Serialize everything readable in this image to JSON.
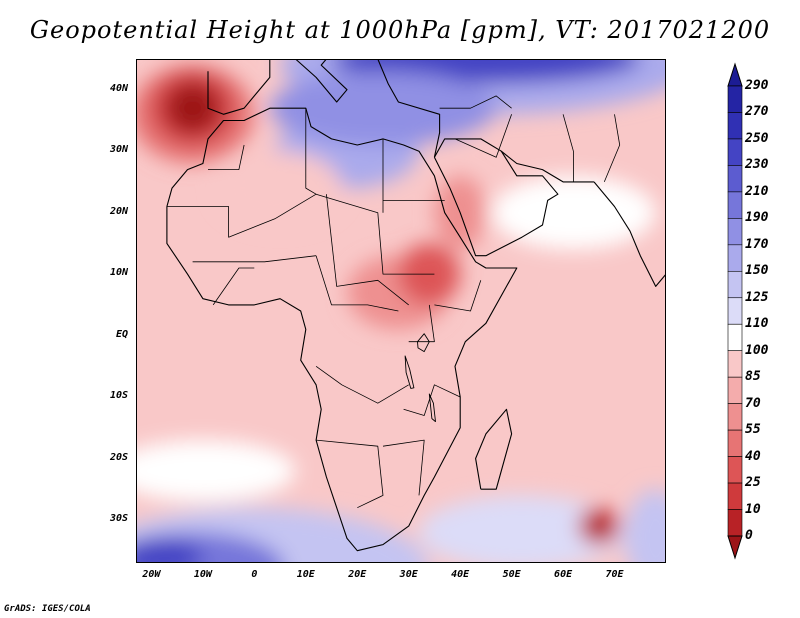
{
  "title": "Geopotential Height at 1000hPa [gpm], VT: 2017021200",
  "credit": "GrADS: IGES/COLA",
  "map": {
    "projection": "lat-lon",
    "lon_range": [
      -23,
      80
    ],
    "lat_range": [
      -37,
      45
    ],
    "lat_labels": [
      {
        "value": 40,
        "text": "40N"
      },
      {
        "value": 30,
        "text": "30N"
      },
      {
        "value": 20,
        "text": "20N"
      },
      {
        "value": 10,
        "text": "10N"
      },
      {
        "value": 0,
        "text": "EQ"
      },
      {
        "value": -10,
        "text": "10S"
      },
      {
        "value": -20,
        "text": "20S"
      },
      {
        "value": -30,
        "text": "30S"
      }
    ],
    "lon_labels": [
      {
        "value": -20,
        "text": "20W"
      },
      {
        "value": -10,
        "text": "10W"
      },
      {
        "value": 0,
        "text": "0"
      },
      {
        "value": 10,
        "text": "10E"
      },
      {
        "value": 20,
        "text": "20E"
      },
      {
        "value": 30,
        "text": "30E"
      },
      {
        "value": 40,
        "text": "40E"
      },
      {
        "value": 50,
        "text": "50E"
      },
      {
        "value": 60,
        "text": "60E"
      },
      {
        "value": 70,
        "text": "70E"
      }
    ]
  },
  "colorbar": {
    "levels": [
      "0",
      "10",
      "25",
      "40",
      "55",
      "70",
      "85",
      "100",
      "110",
      "125",
      "150",
      "170",
      "190",
      "210",
      "230",
      "250",
      "270",
      "290"
    ],
    "colors": [
      "#9c1418",
      "#b82226",
      "#cf3a3c",
      "#dd5556",
      "#e77474",
      "#ee9090",
      "#f4acac",
      "#f9c8c8",
      "#ffffff",
      "#dcdcf8",
      "#c4c4f2",
      "#aaaaec",
      "#9090e4",
      "#7676da",
      "#5c5cd0",
      "#4444c4",
      "#3030b4",
      "#2424a4",
      "#1c1c94"
    ],
    "low_color": "#9c1418",
    "high_color": "#1c1c94"
  },
  "field": {
    "background": "#f9c8c8",
    "blobs": [
      {
        "name": "south-ocean-high",
        "lon": 0,
        "lat": -38,
        "rx": 34,
        "ry": 10,
        "color": "#c4c4f2"
      },
      {
        "name": "south-ocean-high-core",
        "lon": -12,
        "lat": -38,
        "rx": 18,
        "ry": 6,
        "color": "#7676da"
      },
      {
        "name": "south-ocean-high-deep",
        "lon": -18,
        "lat": -36,
        "rx": 8,
        "ry": 3,
        "color": "#4444c4"
      },
      {
        "name": "indian-ocean-high",
        "lon": 52,
        "lat": -32,
        "rx": 20,
        "ry": 6,
        "color": "#dcdcf8"
      },
      {
        "name": "far-east-high",
        "lon": 78,
        "lat": -33,
        "rx": 6,
        "ry": 8,
        "color": "#c4c4f2"
      },
      {
        "name": "south-atlantic-ridge",
        "lon": -10,
        "lat": -22,
        "rx": 18,
        "ry": 5,
        "color": "#ffffff"
      },
      {
        "name": "europe-high",
        "lon": 45,
        "lat": 44,
        "rx": 40,
        "ry": 8,
        "color": "#aaaaec"
      },
      {
        "name": "europe-high-core",
        "lon": 45,
        "lat": 45,
        "rx": 30,
        "ry": 4,
        "color": "#4444c4"
      },
      {
        "name": "libya-high",
        "lon": 18,
        "lat": 30,
        "rx": 14,
        "ry": 6,
        "color": "#aaaaec"
      },
      {
        "name": "med-high",
        "lon": 25,
        "lat": 37,
        "rx": 22,
        "ry": 6,
        "color": "#9090e4"
      },
      {
        "name": "sahara-white",
        "lon": 5,
        "lat": 24,
        "rx": 12,
        "ry": 6,
        "color": "#f9c8c8"
      },
      {
        "name": "arabia-ridge",
        "lon": 62,
        "lat": 20,
        "rx": 16,
        "ry": 6,
        "color": "#ffffff"
      },
      {
        "name": "iberian-low-outer",
        "lon": -12,
        "lat": 36,
        "rx": 12,
        "ry": 8,
        "color": "#e77474"
      },
      {
        "name": "iberian-low",
        "lon": -12,
        "lat": 37,
        "rx": 8,
        "ry": 6,
        "color": "#cf3a3c"
      },
      {
        "name": "iberian-low-core",
        "lon": -12,
        "lat": 37,
        "rx": 5,
        "ry": 4,
        "color": "#9c1418"
      },
      {
        "name": "central-africa-low",
        "lon": 28,
        "lat": 7,
        "rx": 10,
        "ry": 6,
        "color": "#ee9090"
      },
      {
        "name": "ethiopia-low",
        "lon": 34,
        "lat": 10,
        "rx": 6,
        "ry": 5,
        "color": "#dd5556"
      },
      {
        "name": "red-sea-low",
        "lon": 40,
        "lat": 20,
        "rx": 5,
        "ry": 6,
        "color": "#ee9090"
      },
      {
        "name": "madagascar-low",
        "lon": 67,
        "lat": -31,
        "rx": 4,
        "ry": 3,
        "color": "#cf3a3c"
      },
      {
        "name": "madagascar-low-core",
        "lon": 67,
        "lat": -31,
        "rx": 2,
        "ry": 1.6,
        "color": "#9c1418"
      }
    ]
  },
  "coastlines": [
    {
      "name": "africa-coast",
      "points": [
        [
          -17,
          21
        ],
        [
          -17,
          15
        ],
        [
          -13,
          10
        ],
        [
          -10,
          6
        ],
        [
          -5,
          5
        ],
        [
          0,
          5
        ],
        [
          5,
          6
        ],
        [
          9,
          4
        ],
        [
          10,
          1
        ],
        [
          9,
          -4
        ],
        [
          12,
          -8
        ],
        [
          13,
          -12
        ],
        [
          12,
          -17
        ],
        [
          14,
          -23
        ],
        [
          16,
          -28
        ],
        [
          18,
          -33
        ],
        [
          20,
          -35
        ],
        [
          25,
          -34
        ],
        [
          30,
          -31
        ],
        [
          33,
          -26
        ],
        [
          35,
          -23
        ],
        [
          40,
          -15
        ],
        [
          40,
          -10
        ],
        [
          39,
          -5
        ],
        [
          41,
          -1
        ],
        [
          45,
          2
        ],
        [
          49,
          8
        ],
        [
          51,
          11
        ],
        [
          45,
          11
        ],
        [
          43,
          12
        ],
        [
          40,
          16
        ],
        [
          37,
          20
        ],
        [
          35,
          26
        ],
        [
          32,
          30
        ],
        [
          29,
          31
        ],
        [
          25,
          32
        ],
        [
          20,
          31
        ],
        [
          15,
          32
        ],
        [
          11,
          34
        ],
        [
          10,
          37
        ],
        [
          3,
          37
        ],
        [
          -2,
          35
        ],
        [
          -6,
          35
        ],
        [
          -9,
          32
        ],
        [
          -10,
          28
        ],
        [
          -13,
          27
        ],
        [
          -16,
          24
        ],
        [
          -17,
          21
        ]
      ]
    },
    {
      "name": "madagascar-coast",
      "points": [
        [
          44,
          -25
        ],
        [
          43,
          -20
        ],
        [
          45,
          -16
        ],
        [
          49,
          -12
        ],
        [
          50,
          -16
        ],
        [
          47,
          -25
        ],
        [
          44,
          -25
        ]
      ]
    },
    {
      "name": "arabia-coast",
      "points": [
        [
          35,
          29
        ],
        [
          38,
          24
        ],
        [
          40,
          20
        ],
        [
          43,
          13
        ],
        [
          45,
          13
        ],
        [
          52,
          16
        ],
        [
          56,
          18
        ],
        [
          57,
          22
        ],
        [
          59,
          23
        ],
        [
          56,
          26
        ],
        [
          51,
          26
        ],
        [
          48,
          30
        ],
        [
          44,
          32
        ],
        [
          37,
          32
        ],
        [
          35,
          29
        ]
      ]
    },
    {
      "name": "iberia-coast",
      "points": [
        [
          -9,
          43
        ],
        [
          -9,
          37
        ],
        [
          -6,
          36
        ],
        [
          -2,
          37
        ],
        [
          0,
          39
        ],
        [
          3,
          42
        ],
        [
          3,
          45
        ]
      ]
    },
    {
      "name": "italy-coast",
      "points": [
        [
          8,
          45
        ],
        [
          12,
          42
        ],
        [
          16,
          38
        ],
        [
          18,
          40
        ],
        [
          13,
          44
        ],
        [
          14,
          45
        ]
      ]
    },
    {
      "name": "eurasia-coast",
      "points": [
        [
          24,
          45
        ],
        [
          26,
          41
        ],
        [
          28,
          38
        ],
        [
          36,
          36
        ],
        [
          36,
          33
        ],
        [
          35,
          29
        ]
      ]
    },
    {
      "name": "india-coast",
      "points": [
        [
          66,
          25
        ],
        [
          70,
          21
        ],
        [
          73,
          17
        ],
        [
          75,
          13
        ],
        [
          78,
          8
        ],
        [
          80,
          10
        ]
      ]
    },
    {
      "name": "persian-coast",
      "points": [
        [
          48,
          30
        ],
        [
          51,
          28
        ],
        [
          56,
          27
        ],
        [
          60,
          25
        ],
        [
          66,
          25
        ]
      ]
    }
  ],
  "borders": [
    {
      "name": "border-1",
      "points": [
        [
          -17,
          21
        ],
        [
          -5,
          21
        ],
        [
          -5,
          16
        ],
        [
          4,
          19
        ],
        [
          12,
          23
        ],
        [
          24,
          20
        ],
        [
          25,
          10
        ],
        [
          35,
          10
        ]
      ]
    },
    {
      "name": "border-2",
      "points": [
        [
          -9,
          27
        ],
        [
          -3,
          27
        ],
        [
          -2,
          31
        ]
      ]
    },
    {
      "name": "border-3",
      "points": [
        [
          10,
          37
        ],
        [
          10,
          24
        ],
        [
          12,
          23
        ]
      ]
    },
    {
      "name": "border-4",
      "points": [
        [
          25,
          32
        ],
        [
          25,
          20
        ]
      ]
    },
    {
      "name": "border-5",
      "points": [
        [
          25,
          22
        ],
        [
          37,
          22
        ]
      ]
    },
    {
      "name": "border-6",
      "points": [
        [
          14,
          23
        ],
        [
          16,
          8
        ],
        [
          24,
          9
        ],
        [
          30,
          5
        ]
      ]
    },
    {
      "name": "border-7",
      "points": [
        [
          12,
          13
        ],
        [
          15,
          5
        ],
        [
          22,
          5
        ],
        [
          28,
          4
        ]
      ]
    },
    {
      "name": "border-8",
      "points": [
        [
          -12,
          12
        ],
        [
          2,
          12
        ],
        [
          12,
          13
        ]
      ]
    },
    {
      "name": "border-9",
      "points": [
        [
          -8,
          5
        ],
        [
          -3,
          11
        ],
        [
          0,
          11
        ]
      ]
    },
    {
      "name": "border-10",
      "points": [
        [
          12,
          -5
        ],
        [
          17,
          -8
        ],
        [
          24,
          -11
        ],
        [
          30,
          -8
        ]
      ]
    },
    {
      "name": "border-11",
      "points": [
        [
          30,
          -1
        ],
        [
          35,
          -1
        ],
        [
          34,
          5
        ]
      ]
    },
    {
      "name": "border-12",
      "points": [
        [
          12,
          -17
        ],
        [
          24,
          -18
        ],
        [
          25,
          -26
        ],
        [
          20,
          -28
        ]
      ]
    },
    {
      "name": "border-13",
      "points": [
        [
          25,
          -18
        ],
        [
          33,
          -17
        ],
        [
          32,
          -26
        ]
      ]
    },
    {
      "name": "border-14",
      "points": [
        [
          35,
          5
        ],
        [
          42,
          4
        ],
        [
          44,
          9
        ]
      ]
    },
    {
      "name": "border-15",
      "points": [
        [
          29,
          -12
        ],
        [
          33,
          -13
        ],
        [
          35,
          -8
        ],
        [
          40,
          -10
        ]
      ]
    },
    {
      "name": "border-16",
      "points": [
        [
          36,
          37
        ],
        [
          42,
          37
        ],
        [
          47,
          39
        ],
        [
          50,
          37
        ]
      ]
    },
    {
      "name": "border-17",
      "points": [
        [
          39,
          32
        ],
        [
          47,
          29
        ],
        [
          50,
          36
        ]
      ]
    },
    {
      "name": "border-18",
      "points": [
        [
          60,
          36
        ],
        [
          62,
          30
        ],
        [
          62,
          25
        ]
      ]
    },
    {
      "name": "border-19",
      "points": [
        [
          70,
          36
        ],
        [
          71,
          31
        ],
        [
          68,
          25
        ]
      ]
    }
  ],
  "lakes": [
    {
      "name": "lake-victoria",
      "points": [
        [
          31.7,
          -1
        ],
        [
          33,
          0.3
        ],
        [
          34,
          -1
        ],
        [
          33,
          -2.6
        ],
        [
          31.8,
          -2
        ]
      ]
    },
    {
      "name": "lake-tanganyika",
      "points": [
        [
          29.3,
          -3.3
        ],
        [
          30.2,
          -5.5
        ],
        [
          31,
          -8.5
        ],
        [
          30.4,
          -8.6
        ],
        [
          29.5,
          -6
        ]
      ]
    },
    {
      "name": "lake-malawi",
      "points": [
        [
          34,
          -9.5
        ],
        [
          34.8,
          -11
        ],
        [
          35.2,
          -14
        ],
        [
          34.5,
          -13.5
        ]
      ]
    }
  ]
}
